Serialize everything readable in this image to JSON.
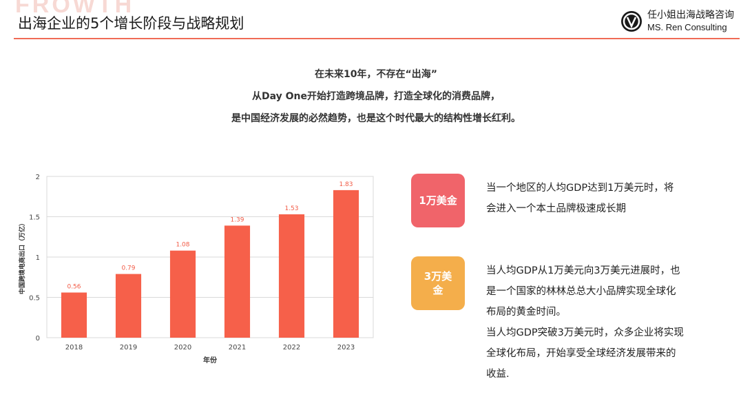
{
  "header": {
    "watermark": "FROWTH",
    "title": "出海企业的5个增长阶段与战略规划",
    "brand_cn": "任小姐出海战略咨询",
    "brand_en": "MS. Ren Consulting",
    "accent_color": "#f06a55"
  },
  "intro": {
    "line1": "在未来10年，不存在“出海”",
    "line2": "从Day One开始打造跨境品牌，打造全球化的消费品牌，",
    "line3": "是中国经济发展的必然趋势，也是这个时代最大的结构性增长红利。"
  },
  "chart_data": {
    "type": "bar",
    "categories": [
      "2018",
      "2019",
      "2020",
      "2021",
      "2022",
      "2023"
    ],
    "values": [
      0.56,
      0.79,
      1.08,
      1.39,
      1.53,
      1.83
    ],
    "data_labels": [
      "0.56",
      "0.79",
      "1.08",
      "1.39",
      "1.53",
      "1.83"
    ],
    "xlabel": "年份",
    "ylabel": "中国跨境电商出口（万亿）",
    "ylim": [
      0,
      2
    ],
    "yticks": [
      "0",
      "0.5",
      "1",
      "1.5",
      "2"
    ],
    "grid": true,
    "bar_color": "#f6604a"
  },
  "callouts": [
    {
      "badge": "1万美金",
      "badge_color": "#f0646a",
      "lines": [
        "当一个地区的人均GDP达到1万美元时，将",
        "会进入一个本土品牌极速成长期"
      ]
    },
    {
      "badge_line1": "3万美",
      "badge_line2": "金",
      "badge_color": "#f4ae4b",
      "lines": [
        "当人均GDP从1万美元向3万美元进展时，也",
        "是一个国家的林林总总大小品牌实现全球化",
        "布局的黄金时间。",
        "当人均GDP突破3万美元时，众多企业将实现",
        "全球化布局，开始享受全球经济发展带来的",
        "收益."
      ]
    }
  ]
}
